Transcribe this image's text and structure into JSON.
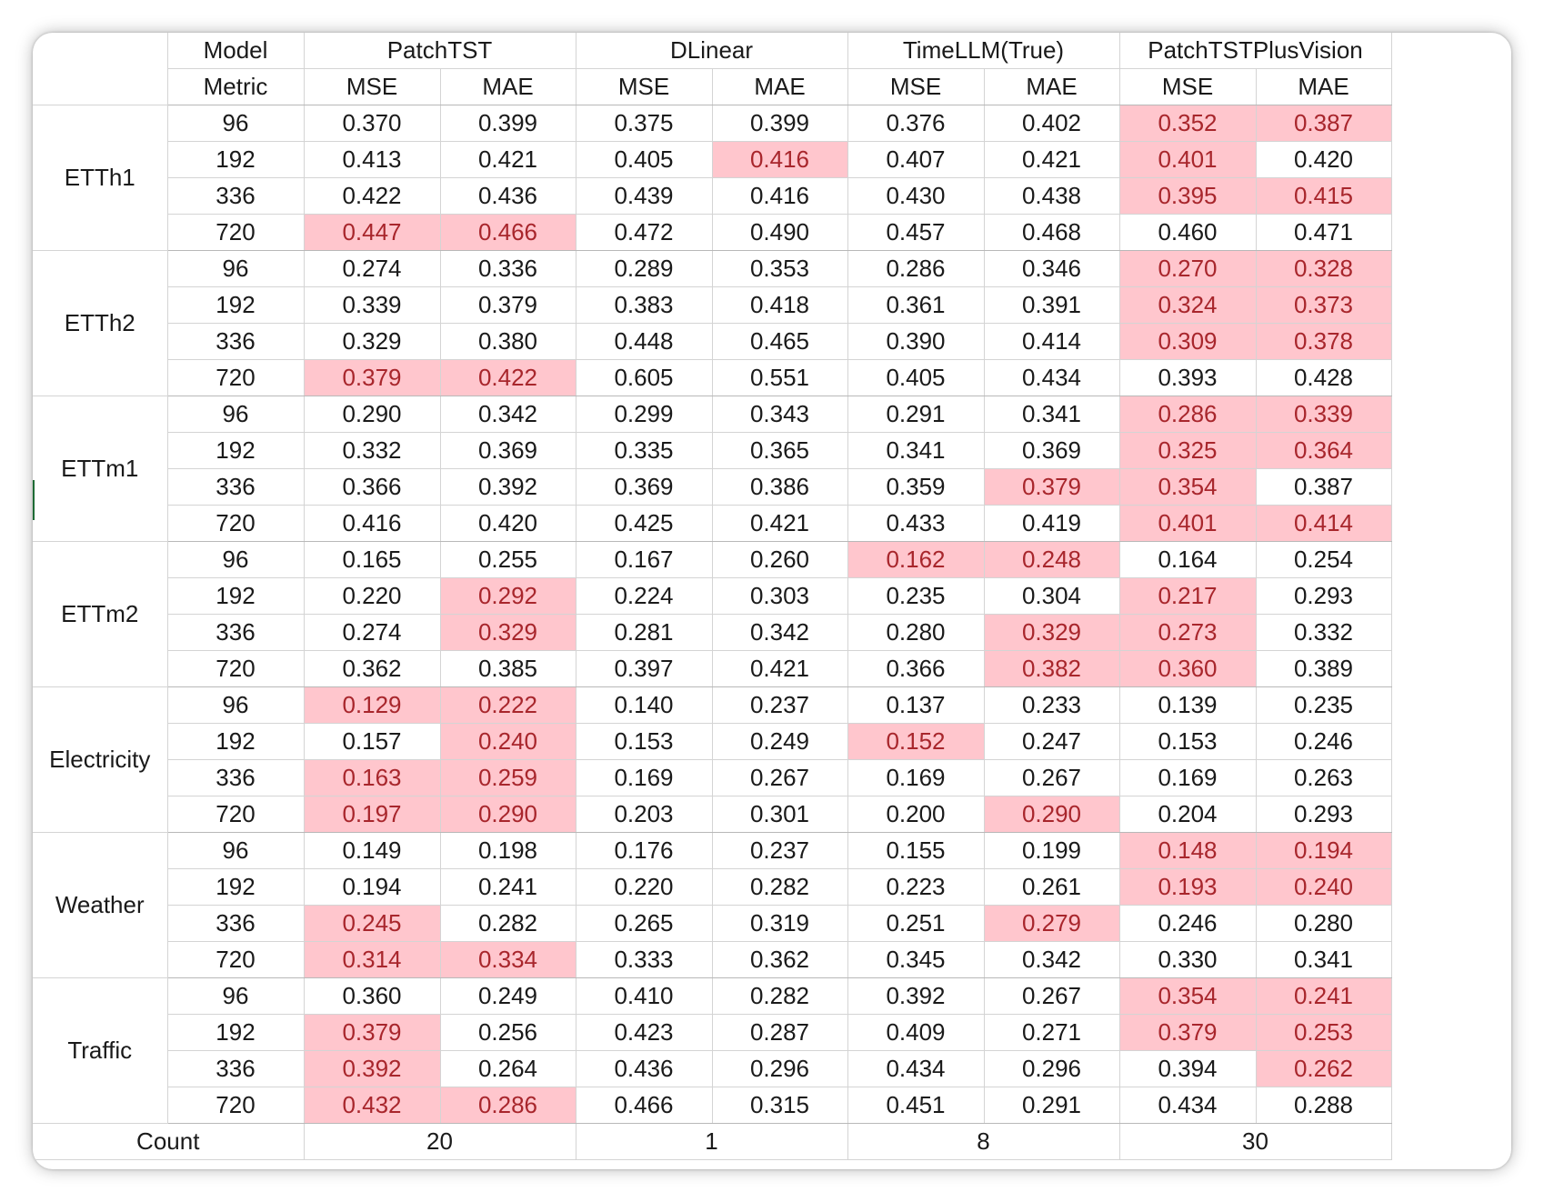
{
  "header": {
    "model_label": "Model",
    "metric_label": "Metric",
    "models": [
      "PatchTST",
      "DLinear",
      "TimeLLM(True)",
      "PatchTSTPlusVision"
    ],
    "metrics": [
      "MSE",
      "MAE"
    ]
  },
  "colors": {
    "highlight_fill": "#ffc6cd",
    "highlight_text": "#a8262c",
    "text": "#1a1a1a"
  },
  "datasets": [
    {
      "name": "ETTh1",
      "rows": [
        {
          "horizon": "96",
          "values": [
            "0.370",
            "0.399",
            "0.375",
            "0.399",
            "0.376",
            "0.402",
            "0.352",
            "0.387"
          ],
          "highlight": [
            6,
            7
          ]
        },
        {
          "horizon": "192",
          "values": [
            "0.413",
            "0.421",
            "0.405",
            "0.416",
            "0.407",
            "0.421",
            "0.401",
            "0.420"
          ],
          "highlight": [
            3,
            6
          ]
        },
        {
          "horizon": "336",
          "values": [
            "0.422",
            "0.436",
            "0.439",
            "0.416",
            "0.430",
            "0.438",
            "0.395",
            "0.415"
          ],
          "highlight": [
            6,
            7
          ]
        },
        {
          "horizon": "720",
          "values": [
            "0.447",
            "0.466",
            "0.472",
            "0.490",
            "0.457",
            "0.468",
            "0.460",
            "0.471"
          ],
          "highlight": [
            0,
            1
          ]
        }
      ]
    },
    {
      "name": "ETTh2",
      "rows": [
        {
          "horizon": "96",
          "values": [
            "0.274",
            "0.336",
            "0.289",
            "0.353",
            "0.286",
            "0.346",
            "0.270",
            "0.328"
          ],
          "highlight": [
            6,
            7
          ]
        },
        {
          "horizon": "192",
          "values": [
            "0.339",
            "0.379",
            "0.383",
            "0.418",
            "0.361",
            "0.391",
            "0.324",
            "0.373"
          ],
          "highlight": [
            6,
            7
          ]
        },
        {
          "horizon": "336",
          "values": [
            "0.329",
            "0.380",
            "0.448",
            "0.465",
            "0.390",
            "0.414",
            "0.309",
            "0.378"
          ],
          "highlight": [
            6,
            7
          ]
        },
        {
          "horizon": "720",
          "values": [
            "0.379",
            "0.422",
            "0.605",
            "0.551",
            "0.405",
            "0.434",
            "0.393",
            "0.428"
          ],
          "highlight": [
            0,
            1
          ]
        }
      ]
    },
    {
      "name": "ETTm1",
      "rows": [
        {
          "horizon": "96",
          "values": [
            "0.290",
            "0.342",
            "0.299",
            "0.343",
            "0.291",
            "0.341",
            "0.286",
            "0.339"
          ],
          "highlight": [
            6,
            7
          ]
        },
        {
          "horizon": "192",
          "values": [
            "0.332",
            "0.369",
            "0.335",
            "0.365",
            "0.341",
            "0.369",
            "0.325",
            "0.364"
          ],
          "highlight": [
            6,
            7
          ]
        },
        {
          "horizon": "336",
          "values": [
            "0.366",
            "0.392",
            "0.369",
            "0.386",
            "0.359",
            "0.379",
            "0.354",
            "0.387"
          ],
          "highlight": [
            5,
            6
          ]
        },
        {
          "horizon": "720",
          "values": [
            "0.416",
            "0.420",
            "0.425",
            "0.421",
            "0.433",
            "0.419",
            "0.401",
            "0.414"
          ],
          "highlight": [
            6,
            7
          ]
        }
      ]
    },
    {
      "name": "ETTm2",
      "rows": [
        {
          "horizon": "96",
          "values": [
            "0.165",
            "0.255",
            "0.167",
            "0.260",
            "0.162",
            "0.248",
            "0.164",
            "0.254"
          ],
          "highlight": [
            4,
            5
          ]
        },
        {
          "horizon": "192",
          "values": [
            "0.220",
            "0.292",
            "0.224",
            "0.303",
            "0.235",
            "0.304",
            "0.217",
            "0.293"
          ],
          "highlight": [
            1,
            6
          ]
        },
        {
          "horizon": "336",
          "values": [
            "0.274",
            "0.329",
            "0.281",
            "0.342",
            "0.280",
            "0.329",
            "0.273",
            "0.332"
          ],
          "highlight": [
            1,
            5,
            6
          ]
        },
        {
          "horizon": "720",
          "values": [
            "0.362",
            "0.385",
            "0.397",
            "0.421",
            "0.366",
            "0.382",
            "0.360",
            "0.389"
          ],
          "highlight": [
            5,
            6
          ]
        }
      ]
    },
    {
      "name": "Electricity",
      "rows": [
        {
          "horizon": "96",
          "values": [
            "0.129",
            "0.222",
            "0.140",
            "0.237",
            "0.137",
            "0.233",
            "0.139",
            "0.235"
          ],
          "highlight": [
            0,
            1
          ]
        },
        {
          "horizon": "192",
          "values": [
            "0.157",
            "0.240",
            "0.153",
            "0.249",
            "0.152",
            "0.247",
            "0.153",
            "0.246"
          ],
          "highlight": [
            1,
            4
          ]
        },
        {
          "horizon": "336",
          "values": [
            "0.163",
            "0.259",
            "0.169",
            "0.267",
            "0.169",
            "0.267",
            "0.169",
            "0.263"
          ],
          "highlight": [
            0,
            1
          ]
        },
        {
          "horizon": "720",
          "values": [
            "0.197",
            "0.290",
            "0.203",
            "0.301",
            "0.200",
            "0.290",
            "0.204",
            "0.293"
          ],
          "highlight": [
            0,
            1,
            5
          ]
        }
      ]
    },
    {
      "name": "Weather",
      "rows": [
        {
          "horizon": "96",
          "values": [
            "0.149",
            "0.198",
            "0.176",
            "0.237",
            "0.155",
            "0.199",
            "0.148",
            "0.194"
          ],
          "highlight": [
            6,
            7
          ]
        },
        {
          "horizon": "192",
          "values": [
            "0.194",
            "0.241",
            "0.220",
            "0.282",
            "0.223",
            "0.261",
            "0.193",
            "0.240"
          ],
          "highlight": [
            6,
            7
          ]
        },
        {
          "horizon": "336",
          "values": [
            "0.245",
            "0.282",
            "0.265",
            "0.319",
            "0.251",
            "0.279",
            "0.246",
            "0.280"
          ],
          "highlight": [
            0,
            5
          ]
        },
        {
          "horizon": "720",
          "values": [
            "0.314",
            "0.334",
            "0.333",
            "0.362",
            "0.345",
            "0.342",
            "0.330",
            "0.341"
          ],
          "highlight": [
            0,
            1
          ]
        }
      ]
    },
    {
      "name": "Traffic",
      "rows": [
        {
          "horizon": "96",
          "values": [
            "0.360",
            "0.249",
            "0.410",
            "0.282",
            "0.392",
            "0.267",
            "0.354",
            "0.241"
          ],
          "highlight": [
            6,
            7
          ]
        },
        {
          "horizon": "192",
          "values": [
            "0.379",
            "0.256",
            "0.423",
            "0.287",
            "0.409",
            "0.271",
            "0.379",
            "0.253"
          ],
          "highlight": [
            0,
            6,
            7
          ]
        },
        {
          "horizon": "336",
          "values": [
            "0.392",
            "0.264",
            "0.436",
            "0.296",
            "0.434",
            "0.296",
            "0.394",
            "0.262"
          ],
          "highlight": [
            0,
            7
          ]
        },
        {
          "horizon": "720",
          "values": [
            "0.432",
            "0.286",
            "0.466",
            "0.315",
            "0.451",
            "0.291",
            "0.434",
            "0.288"
          ],
          "highlight": [
            0,
            1
          ]
        }
      ]
    }
  ],
  "footer": {
    "label": "Count",
    "counts": [
      "20",
      "1",
      "8",
      "30"
    ]
  }
}
